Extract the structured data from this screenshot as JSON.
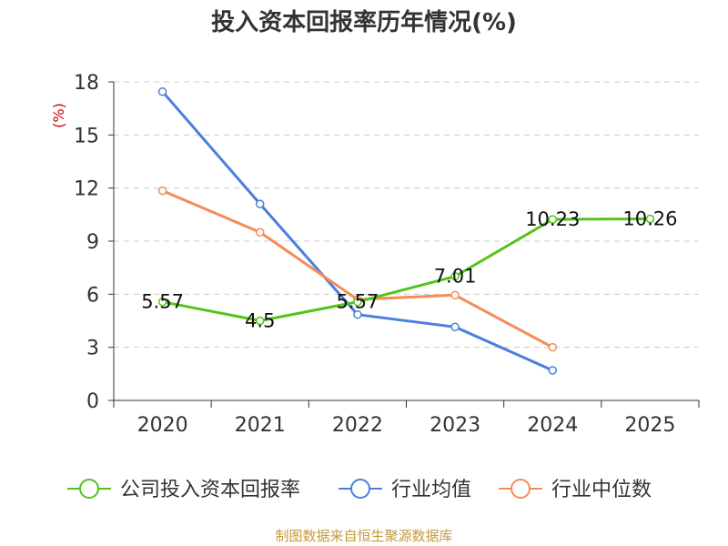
{
  "colors": {
    "company": "#52c41a",
    "industry_avg": "#4a7fdf",
    "industry_median": "#f68b57",
    "grid": "#cccccc",
    "axis": "#333333",
    "ylabel": "#cc0000",
    "source": "#c39a3d"
  },
  "source_text": "制图数据来自恒生聚源数据库",
  "chart_data": {
    "type": "line",
    "title": "投入资本回报率历年情况(%)",
    "xlabel": "",
    "ylabel": "(%)",
    "ylim": [
      0,
      18
    ],
    "yticks": [
      0,
      3,
      6,
      9,
      12,
      15,
      18
    ],
    "categories": [
      "2020",
      "2021",
      "2022",
      "2023",
      "2024",
      "2025"
    ],
    "legend_position": "bottom",
    "grid": true,
    "series": [
      {
        "name": "公司投入资本回报率",
        "color_key": "company",
        "values": [
          5.57,
          4.5,
          5.57,
          7.01,
          10.23,
          10.26
        ],
        "labels": [
          "5.57",
          "4.5",
          "5.57",
          "7.01",
          "10.23",
          "10.26"
        ]
      },
      {
        "name": "行业均值",
        "color_key": "industry_avg",
        "values": [
          17.45,
          11.1,
          4.85,
          4.15,
          1.7,
          null
        ],
        "labels": []
      },
      {
        "name": "行业中位数",
        "color_key": "industry_median",
        "values": [
          11.85,
          9.5,
          5.7,
          5.95,
          3.0,
          null
        ],
        "labels": []
      }
    ]
  }
}
